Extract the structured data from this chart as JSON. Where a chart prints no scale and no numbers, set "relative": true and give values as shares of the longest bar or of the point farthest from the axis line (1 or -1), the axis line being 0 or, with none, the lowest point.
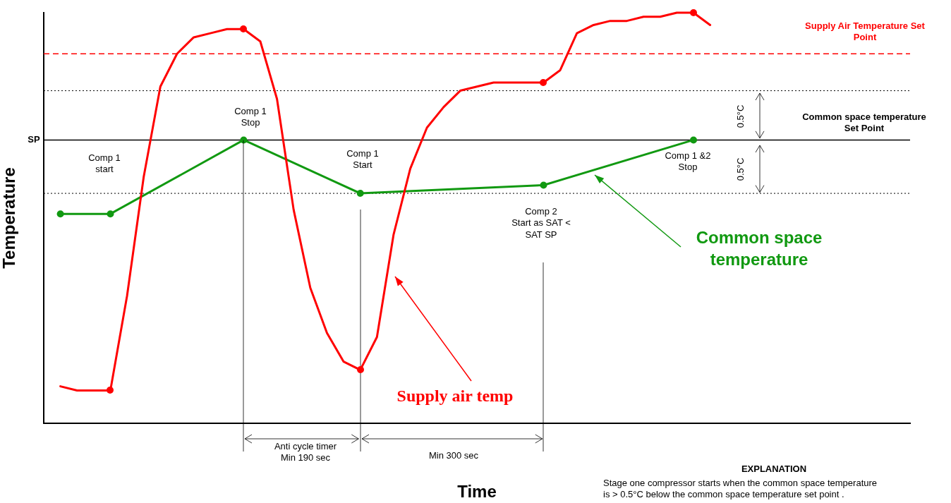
{
  "chart_data": {
    "type": "line",
    "xlabel": "Time",
    "ylabel": "Temperature",
    "relative": true,
    "legend": false,
    "categories": [
      null,
      null,
      null,
      null,
      null,
      null,
      null,
      null,
      null,
      null,
      null,
      null,
      null,
      null,
      null,
      null,
      null,
      null,
      null,
      null,
      null,
      null,
      null,
      null,
      null,
      null,
      null,
      null,
      null,
      null,
      null,
      null,
      null,
      null,
      null,
      null,
      null,
      null,
      null,
      null,
      null,
      null,
      null,
      null,
      null,
      null,
      null,
      null,
      null,
      null,
      null,
      null,
      null
    ],
    "series": [
      {
        "name": "Supply air temp",
        "type": "line",
        "color": "#ff0000",
        "marker": "none",
        "values": [
          null,
          0.09,
          0.08,
          0.08,
          0.08,
          0.31,
          0.6,
          0.82,
          0.9,
          0.94,
          0.95,
          0.96,
          0.96,
          0.93,
          0.79,
          0.52,
          0.33,
          0.22,
          0.15,
          0.13,
          0.21,
          0.46,
          0.62,
          0.72,
          0.77,
          0.81,
          0.82,
          0.83,
          0.83,
          0.83,
          0.83,
          0.86,
          0.95,
          0.97,
          0.98,
          0.98,
          0.99,
          0.99,
          1.0,
          1.0,
          0.97,
          null,
          null,
          null,
          null,
          null,
          null,
          null,
          null,
          null,
          null,
          null,
          null
        ]
      },
      {
        "name": "Common space temperature",
        "type": "line",
        "color": "#119911",
        "marker": "circle",
        "values": [
          null,
          0.51,
          null,
          null,
          0.51,
          null,
          null,
          null,
          null,
          null,
          null,
          null,
          0.69,
          null,
          null,
          null,
          null,
          null,
          null,
          0.56,
          null,
          null,
          null,
          null,
          null,
          null,
          null,
          null,
          null,
          null,
          0.58,
          null,
          null,
          null,
          null,
          null,
          null,
          null,
          null,
          0.69,
          null,
          null,
          null,
          null,
          null,
          null,
          null,
          null,
          null,
          null,
          null,
          null,
          null
        ]
      }
    ],
    "ref_lines": [
      {
        "axis": "y",
        "value": 0.9,
        "label": "Supply Air Temperature Set Point",
        "color": "#ff0000",
        "line_style": "dashed"
      },
      {
        "axis": "y",
        "value": 0.81,
        "color": "#000000",
        "line_style": "dotted"
      },
      {
        "axis": "y",
        "value": 0.69,
        "label": "SP",
        "color": "#000000",
        "line_style": "solid"
      },
      {
        "axis": "y",
        "value": 0.56,
        "color": "#000000",
        "line_style": "dotted"
      }
    ],
    "annotations": [
      "Comp 1\nstart",
      "Comp 1\nStop",
      "Comp 1\nStart",
      "Comp 2\nStart as SAT <\nSAT SP",
      "Comp 1 &2\nStop",
      "Anti cycle timer\nMin 190 sec",
      "Min 300 sec",
      "0.5°C",
      "0.5°C",
      "Common space temperature\nSet Point",
      "EXPLANATION",
      "Stage one compressor starts when the common space temperature\nis > 0.5°C below the common space temperature set point ."
    ]
  }
}
